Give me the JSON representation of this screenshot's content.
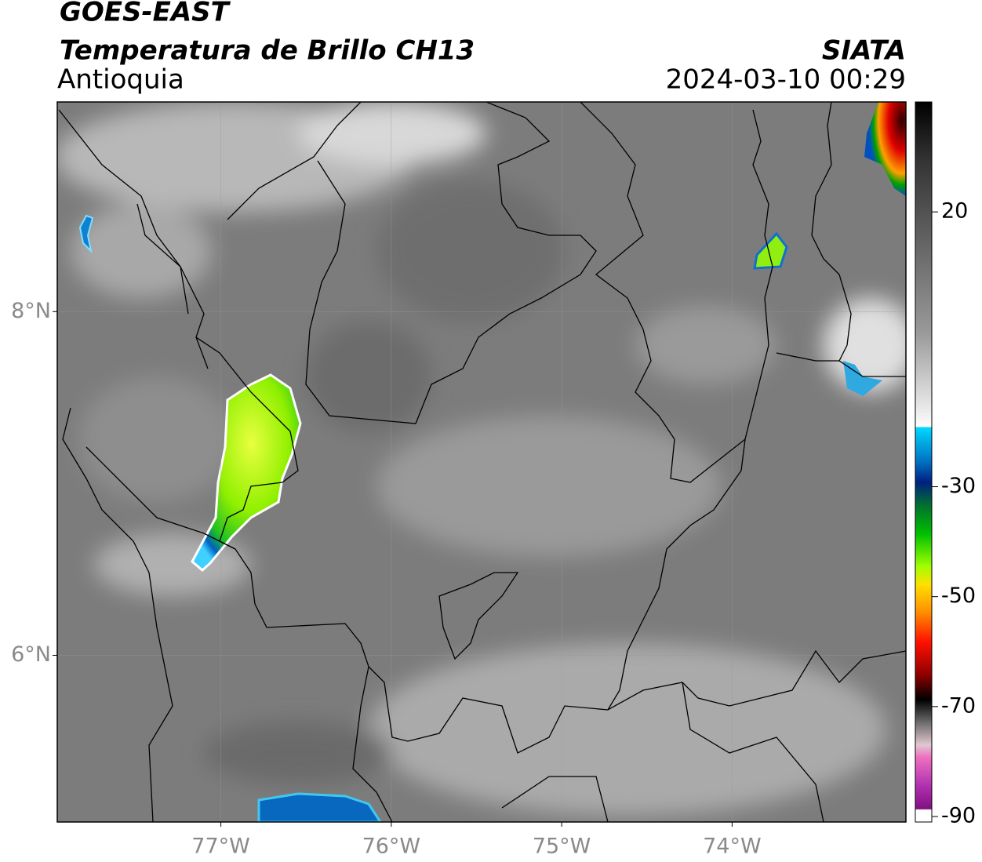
{
  "header": {
    "title": "GOES-EAST",
    "subtitle": "Temperatura de Brillo CH13",
    "region": "Antioquia",
    "source": "SIATA",
    "datetime": "2024-03-10 00:29"
  },
  "map": {
    "xlim": [
      -77.96,
      -72.98
    ],
    "ylim": [
      5.03,
      9.22
    ],
    "xticks": [
      {
        "value": -77,
        "label": "77°W"
      },
      {
        "value": -76,
        "label": "76°W"
      },
      {
        "value": -75,
        "label": "75°W"
      },
      {
        "value": -74,
        "label": "74°W"
      }
    ],
    "yticks": [
      {
        "value": 8,
        "label": "8°N"
      },
      {
        "value": 6,
        "label": "6°N"
      }
    ]
  },
  "colorbar": {
    "lim": [
      -91,
      40
    ],
    "ticks": [
      20,
      -30,
      -50,
      -70,
      -90
    ]
  }
}
